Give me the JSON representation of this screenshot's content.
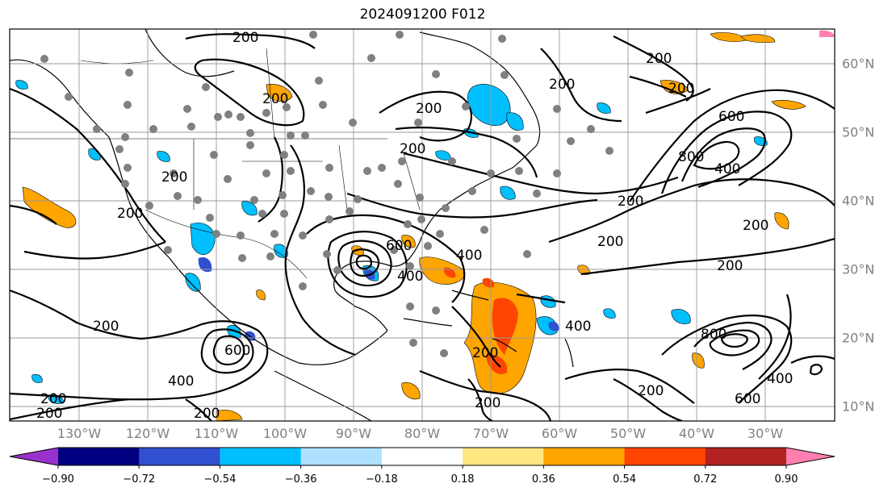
{
  "title": "2024091200 F012",
  "lon_labels": [
    "130°W",
    "120°W",
    "110°W",
    "100°W",
    "90°W",
    "80°W",
    "70°W",
    "60°W",
    "50°W",
    "40°W",
    "30°W"
  ],
  "lat_labels": [
    "60°N",
    "50°N",
    "40°N",
    "30°N",
    "20°N",
    "10°N"
  ],
  "contour_labels": {
    "c200": "200",
    "c400": "400",
    "c600": "600",
    "c800": "800"
  },
  "colorbar": {
    "ticks": [
      "−0.90",
      "−0.72",
      "−0.54",
      "−0.36",
      "−0.18",
      "0.18",
      "0.36",
      "0.54",
      "0.72",
      "0.90"
    ],
    "colors": [
      "#9932cc",
      "#000080",
      "#3050d0",
      "#00bfff",
      "#aee0ff",
      "#ffffff",
      "#ffe680",
      "#ffa500",
      "#ff4500",
      "#b22222",
      "#ff80b0"
    ]
  },
  "fill_colors": {
    "light_orange": "#ffa500",
    "dark_orange": "#ff4500",
    "light_blue": "#00bfff",
    "mid_blue": "#3050d0",
    "points": "#808080"
  }
}
